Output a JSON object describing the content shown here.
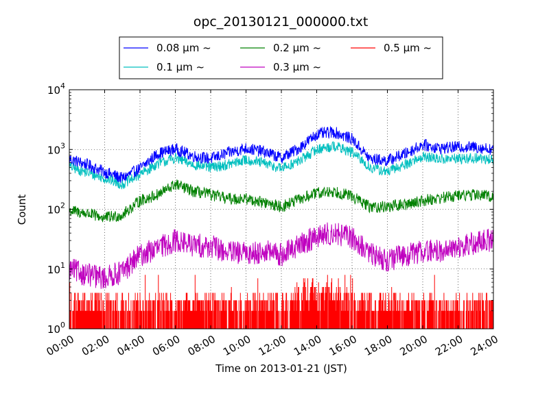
{
  "chart_data": {
    "type": "line",
    "title": "opc_20130121_000000.txt",
    "xlabel": "Time on 2013-01-21 (JST)",
    "ylabel": "Count",
    "x_ticks": [
      "00:00",
      "02:00",
      "04:00",
      "06:00",
      "08:00",
      "10:00",
      "12:00",
      "14:00",
      "16:00",
      "18:00",
      "20:00",
      "22:00",
      "24:00"
    ],
    "xlim": [
      "2013-01-21T00:00",
      "2013-01-22T00:00"
    ],
    "y_scale": "log",
    "ylim": [
      1,
      10000
    ],
    "y_ticks": [
      {
        "base": "10",
        "exp": "0"
      },
      {
        "base": "10",
        "exp": "1"
      },
      {
        "base": "10",
        "exp": "2"
      },
      {
        "base": "10",
        "exp": "3"
      },
      {
        "base": "10",
        "exp": "4"
      }
    ],
    "grid": true,
    "legend_position": "top",
    "series": [
      {
        "name": "0.08 μm ~",
        "color": "#0000ff",
        "x": [
          "00:00",
          "01:00",
          "02:00",
          "03:00",
          "04:00",
          "05:00",
          "06:00",
          "07:00",
          "08:00",
          "09:00",
          "10:00",
          "11:00",
          "12:00",
          "13:00",
          "14:00",
          "15:00",
          "16:00",
          "17:00",
          "18:00",
          "19:00",
          "20:00",
          "21:00",
          "22:00",
          "23:00",
          "24:00"
        ],
        "y": [
          700,
          560,
          420,
          330,
          480,
          850,
          1020,
          780,
          700,
          880,
          1050,
          920,
          720,
          1050,
          1800,
          1950,
          1500,
          700,
          650,
          850,
          1200,
          1050,
          1100,
          1100,
          1000
        ]
      },
      {
        "name": "0.1 μm ~",
        "color": "#00bfbf",
        "x": [
          "00:00",
          "01:00",
          "02:00",
          "03:00",
          "04:00",
          "05:00",
          "06:00",
          "07:00",
          "08:00",
          "09:00",
          "10:00",
          "11:00",
          "12:00",
          "13:00",
          "14:00",
          "15:00",
          "16:00",
          "17:00",
          "18:00",
          "19:00",
          "20:00",
          "21:00",
          "22:00",
          "23:00",
          "24:00"
        ],
        "y": [
          520,
          410,
          330,
          260,
          380,
          580,
          720,
          560,
          500,
          560,
          670,
          590,
          480,
          640,
          1000,
          1150,
          900,
          500,
          420,
          560,
          760,
          690,
          700,
          710,
          680
        ]
      },
      {
        "name": "0.2 μm ~",
        "color": "#008000",
        "x": [
          "00:00",
          "01:00",
          "02:00",
          "03:00",
          "04:00",
          "05:00",
          "06:00",
          "07:00",
          "08:00",
          "09:00",
          "10:00",
          "11:00",
          "12:00",
          "13:00",
          "14:00",
          "15:00",
          "16:00",
          "17:00",
          "18:00",
          "19:00",
          "20:00",
          "21:00",
          "22:00",
          "23:00",
          "24:00"
        ],
        "y": [
          95,
          85,
          72,
          80,
          140,
          175,
          260,
          200,
          175,
          150,
          150,
          130,
          110,
          145,
          185,
          200,
          165,
          110,
          110,
          120,
          140,
          155,
          170,
          175,
          165
        ]
      },
      {
        "name": "0.3 μm ~",
        "color": "#bf00bf",
        "x": [
          "00:00",
          "01:00",
          "02:00",
          "03:00",
          "04:00",
          "05:00",
          "06:00",
          "07:00",
          "08:00",
          "09:00",
          "10:00",
          "11:00",
          "12:00",
          "13:00",
          "14:00",
          "15:00",
          "16:00",
          "17:00",
          "18:00",
          "19:00",
          "20:00",
          "21:00",
          "22:00",
          "23:00",
          "24:00"
        ],
        "y": [
          10,
          8,
          7,
          9,
          17,
          22,
          30,
          25,
          24,
          19,
          18,
          20,
          17,
          25,
          35,
          40,
          33,
          18,
          14,
          17,
          20,
          20,
          23,
          27,
          32
        ]
      },
      {
        "name": "0.5 μm ~",
        "color": "#ff0000",
        "x": [
          "00:00",
          "01:00",
          "02:00",
          "03:00",
          "04:00",
          "05:00",
          "06:00",
          "07:00",
          "08:00",
          "09:00",
          "10:00",
          "11:00",
          "12:00",
          "13:00",
          "14:00",
          "15:00",
          "16:00",
          "17:00",
          "18:00",
          "19:00",
          "20:00",
          "21:00",
          "22:00",
          "23:00",
          "24:00"
        ],
        "y": [
          1.5,
          1.4,
          1.3,
          1.4,
          2,
          2,
          2.2,
          2,
          2,
          1.9,
          1.9,
          1.9,
          1.8,
          2.5,
          3,
          3,
          2.6,
          1.8,
          1.7,
          1.8,
          2,
          2,
          2,
          2,
          2
        ]
      }
    ]
  }
}
